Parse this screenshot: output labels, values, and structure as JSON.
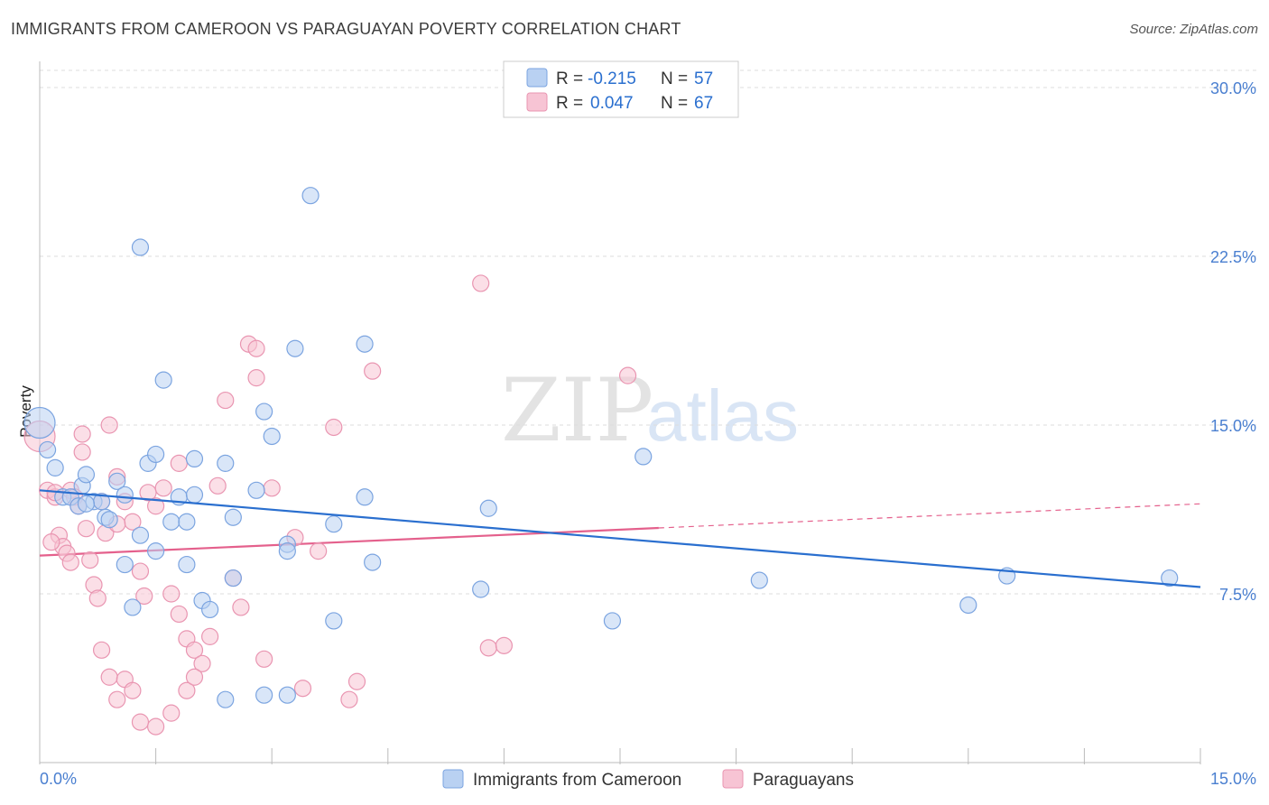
{
  "title": "IMMIGRANTS FROM CAMEROON VS PARAGUAYAN POVERTY CORRELATION CHART",
  "source": "Source: ZipAtlas.com",
  "colors": {
    "blue_fill": "#b9d1f2",
    "blue_stroke": "#7ba4e0",
    "blue_line": "#2a6fcf",
    "pink_fill": "#f7c4d4",
    "pink_stroke": "#e995b1",
    "pink_line": "#e4608c",
    "tick_text": "#4a7fd0",
    "grid": "#dddddd"
  },
  "legend": {
    "rows": [
      {
        "r_label": "R =",
        "r_value": "-0.215",
        "n_label": "N =",
        "n_value": "57"
      },
      {
        "r_label": "R =",
        "r_value": "0.047",
        "n_label": "N =",
        "n_value": "67"
      }
    ]
  },
  "watermark": {
    "zip": "ZIP",
    "atlas": "atlas"
  },
  "chart_data": {
    "type": "scatter",
    "title": "IMMIGRANTS FROM CAMEROON VS PARAGUAYAN POVERTY CORRELATION CHART",
    "xlabel": "",
    "ylabel": "Poverty",
    "xlim": [
      0,
      15
    ],
    "ylim": [
      0,
      30
    ],
    "x_tick_labels": [
      "0.0%",
      "15.0%"
    ],
    "y_ticks": [
      7.5,
      15.0,
      22.5,
      30.0
    ],
    "y_tick_labels": [
      "7.5%",
      "15.0%",
      "22.5%",
      "30.0%"
    ],
    "grid": true,
    "series": [
      {
        "name": "Immigrants from Cameroon",
        "r": -0.215,
        "n": 57,
        "trend": {
          "x0": 0,
          "y0": 12.1,
          "x1": 15,
          "y1": 7.8
        },
        "points": [
          [
            0.0,
            15.1
          ],
          [
            0.1,
            13.9
          ],
          [
            0.2,
            13.1
          ],
          [
            0.3,
            11.8
          ],
          [
            0.4,
            11.8
          ],
          [
            0.5,
            11.4
          ],
          [
            0.55,
            12.3
          ],
          [
            0.6,
            12.8
          ],
          [
            0.7,
            11.6
          ],
          [
            0.8,
            11.6
          ],
          [
            0.85,
            10.9
          ],
          [
            0.9,
            10.8
          ],
          [
            1.0,
            12.5
          ],
          [
            1.1,
            11.9
          ],
          [
            1.3,
            10.1
          ],
          [
            1.4,
            13.3
          ],
          [
            1.5,
            13.7
          ],
          [
            1.6,
            17.0
          ],
          [
            1.7,
            10.7
          ],
          [
            1.8,
            11.8
          ],
          [
            1.9,
            10.7
          ],
          [
            2.0,
            13.5
          ],
          [
            2.1,
            7.2
          ],
          [
            2.2,
            6.8
          ],
          [
            2.5,
            10.9
          ],
          [
            2.9,
            15.6
          ],
          [
            3.0,
            14.5
          ],
          [
            3.3,
            18.4
          ],
          [
            4.2,
            18.6
          ],
          [
            3.5,
            25.2
          ],
          [
            1.3,
            22.9
          ],
          [
            3.8,
            10.6
          ],
          [
            4.2,
            11.8
          ],
          [
            3.2,
            9.7
          ],
          [
            2.8,
            12.1
          ],
          [
            4.3,
            8.9
          ],
          [
            1.1,
            8.8
          ],
          [
            1.2,
            6.9
          ],
          [
            1.5,
            9.4
          ],
          [
            1.9,
            8.8
          ],
          [
            2.5,
            8.2
          ],
          [
            3.2,
            9.4
          ],
          [
            2.4,
            13.3
          ],
          [
            3.8,
            6.3
          ],
          [
            2.4,
            2.8
          ],
          [
            2.9,
            3.0
          ],
          [
            3.2,
            3.0
          ],
          [
            5.8,
            11.3
          ],
          [
            5.7,
            7.7
          ],
          [
            7.8,
            13.6
          ],
          [
            7.4,
            6.3
          ],
          [
            9.3,
            8.1
          ],
          [
            12.0,
            7.0
          ],
          [
            12.5,
            8.3
          ],
          [
            14.6,
            8.2
          ],
          [
            2.0,
            11.9
          ],
          [
            0.6,
            11.5
          ]
        ]
      },
      {
        "name": "Paraguayans",
        "r": 0.047,
        "n": 67,
        "trend": {
          "x0": 0,
          "y0": 9.2,
          "x1": 15,
          "y1": 11.5,
          "solid_until_x": 8.0
        },
        "points": [
          [
            0.0,
            14.5
          ],
          [
            0.1,
            12.1
          ],
          [
            0.2,
            11.8
          ],
          [
            0.25,
            10.1
          ],
          [
            0.3,
            9.6
          ],
          [
            0.35,
            9.3
          ],
          [
            0.4,
            12.1
          ],
          [
            0.45,
            11.8
          ],
          [
            0.5,
            11.4
          ],
          [
            0.55,
            14.6
          ],
          [
            0.6,
            10.4
          ],
          [
            0.65,
            9.0
          ],
          [
            0.7,
            7.9
          ],
          [
            0.75,
            7.3
          ],
          [
            0.8,
            11.6
          ],
          [
            0.85,
            10.2
          ],
          [
            0.9,
            15.0
          ],
          [
            1.0,
            12.7
          ],
          [
            1.1,
            11.6
          ],
          [
            1.2,
            10.7
          ],
          [
            1.3,
            8.5
          ],
          [
            1.35,
            7.4
          ],
          [
            1.4,
            12.0
          ],
          [
            1.6,
            12.2
          ],
          [
            1.7,
            7.5
          ],
          [
            1.8,
            6.6
          ],
          [
            1.9,
            5.5
          ],
          [
            2.0,
            5.0
          ],
          [
            2.1,
            4.4
          ],
          [
            2.2,
            5.6
          ],
          [
            2.3,
            12.3
          ],
          [
            2.4,
            16.1
          ],
          [
            2.5,
            8.2
          ],
          [
            2.6,
            6.9
          ],
          [
            2.7,
            18.6
          ],
          [
            2.8,
            17.1
          ],
          [
            2.9,
            4.6
          ],
          [
            3.0,
            12.2
          ],
          [
            3.4,
            3.3
          ],
          [
            3.6,
            9.4
          ],
          [
            3.8,
            14.9
          ],
          [
            4.0,
            2.8
          ],
          [
            4.1,
            3.6
          ],
          [
            4.3,
            17.4
          ],
          [
            5.7,
            21.3
          ],
          [
            5.8,
            5.1
          ],
          [
            6.0,
            5.2
          ],
          [
            7.6,
            17.2
          ],
          [
            0.8,
            5.0
          ],
          [
            0.9,
            3.8
          ],
          [
            1.0,
            2.8
          ],
          [
            1.1,
            3.7
          ],
          [
            1.2,
            3.2
          ],
          [
            1.3,
            1.8
          ],
          [
            1.5,
            1.6
          ],
          [
            1.7,
            2.2
          ],
          [
            1.9,
            3.2
          ],
          [
            2.0,
            3.8
          ],
          [
            0.15,
            9.8
          ],
          [
            0.4,
            8.9
          ],
          [
            0.55,
            13.8
          ],
          [
            1.0,
            10.6
          ],
          [
            1.5,
            11.4
          ],
          [
            2.8,
            18.4
          ],
          [
            3.3,
            10.0
          ],
          [
            0.2,
            12.0
          ],
          [
            1.8,
            13.3
          ]
        ]
      }
    ]
  }
}
